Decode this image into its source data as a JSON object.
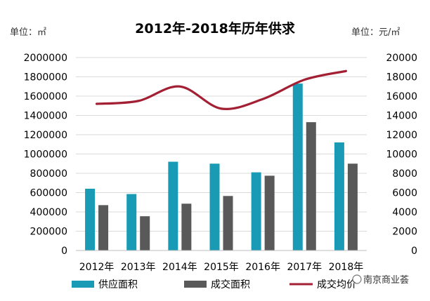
{
  "watermark": "南京商业荟",
  "chart_data": {
    "type": "bar",
    "title": "2012年-2018年历年供求",
    "left_unit_label": "单位：㎡",
    "right_unit_label": "单位：元/㎡",
    "categories": [
      "2012年",
      "2013年",
      "2014年",
      "2015年",
      "2016年",
      "2017年",
      "2018年"
    ],
    "ylim": [
      0,
      2000000
    ],
    "y2lim": [
      0,
      20000
    ],
    "y_ticks": [
      "0",
      "200000",
      "400000",
      "600000",
      "800000",
      "1000000",
      "1200000",
      "1400000",
      "1600000",
      "1800000",
      "2000000"
    ],
    "y2_ticks": [
      "0",
      "2000",
      "4000",
      "6000",
      "8000",
      "10000",
      "12000",
      "14000",
      "16000",
      "18000",
      "20000"
    ],
    "series": [
      {
        "name": "供应面积",
        "type": "bar",
        "axis": "left",
        "color": "#1a9bb5",
        "values": [
          640000,
          585000,
          920000,
          900000,
          810000,
          1730000,
          1120000
        ]
      },
      {
        "name": "成交面积",
        "type": "bar",
        "axis": "left",
        "color": "#595959",
        "values": [
          470000,
          355000,
          485000,
          565000,
          775000,
          1330000,
          900000
        ]
      },
      {
        "name": "成交均价",
        "type": "line",
        "axis": "right",
        "color": "#a31f34",
        "values": [
          15200,
          15500,
          17000,
          14700,
          15700,
          17700,
          18600
        ]
      }
    ],
    "grid": true,
    "legend_position": "bottom"
  }
}
